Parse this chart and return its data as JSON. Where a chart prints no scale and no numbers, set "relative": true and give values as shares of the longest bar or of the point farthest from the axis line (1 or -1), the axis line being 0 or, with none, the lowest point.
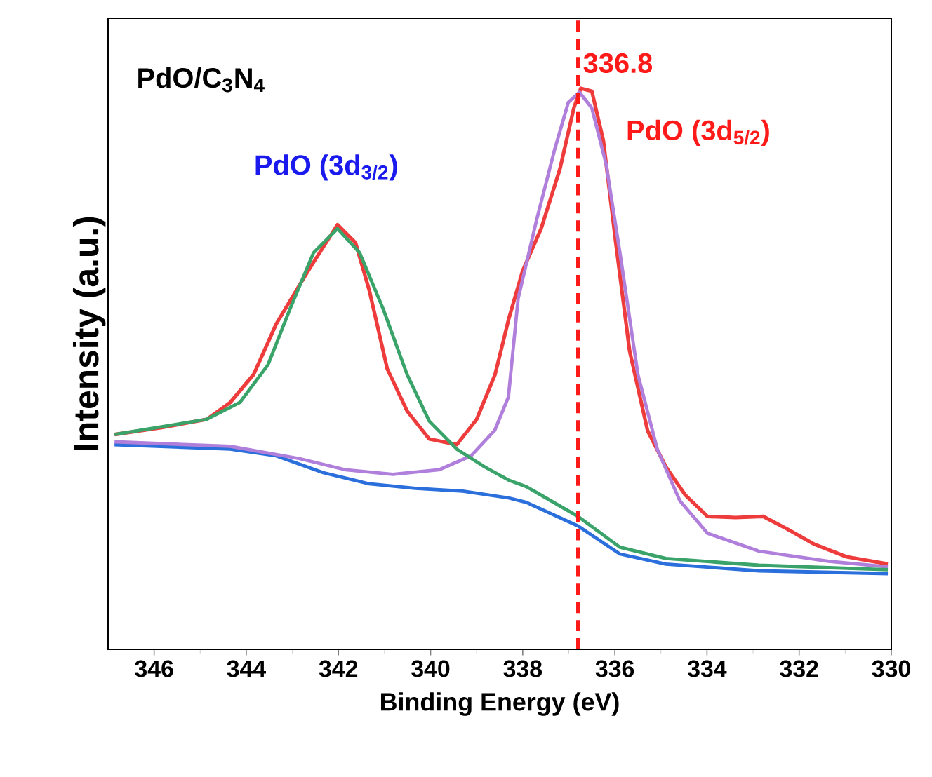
{
  "chart_data": {
    "type": "line",
    "xlabel": "Binding Energy (eV)",
    "ylabel": "Intensity (a.u.)",
    "relative": true,
    "xlim": [
      347,
      330
    ],
    "xticks": [
      346,
      344,
      342,
      340,
      338,
      336,
      334,
      332,
      330
    ],
    "grid": false,
    "marker": "none",
    "line_style": "solid",
    "ref_lines": [
      {
        "axis": "x",
        "value": 336.8,
        "label": "336.8",
        "color": "#ff1a1a",
        "line_style": "dashed"
      }
    ],
    "annotations": [
      "PdO/C$_{3}$N$_{4}$",
      "PdO (3d$_{3/2}$)",
      "PdO (3d$_{5/2}$)"
    ],
    "series": [
      {
        "color": "#ee3b3b",
        "x": [
          346.86,
          345.86,
          344.86,
          344.35,
          343.84,
          343.35,
          342.84,
          342.54,
          342.02,
          341.63,
          341.33,
          340.94,
          340.51,
          340.03,
          339.43,
          339.0,
          338.6,
          338.3,
          338.0,
          337.6,
          337.19,
          336.89,
          336.74,
          336.5,
          336.25,
          335.98,
          335.68,
          335.29,
          334.89,
          334.47,
          333.99,
          333.38,
          332.78,
          332.27,
          331.66,
          330.97,
          330.06
        ],
        "values": [
          0.383,
          0.395,
          0.41,
          0.44,
          0.49,
          0.58,
          0.65,
          0.69,
          0.757,
          0.725,
          0.64,
          0.5,
          0.425,
          0.375,
          0.365,
          0.41,
          0.49,
          0.59,
          0.675,
          0.75,
          0.857,
          0.965,
          1.0,
          0.995,
          0.907,
          0.725,
          0.532,
          0.39,
          0.325,
          0.275,
          0.237,
          0.235,
          0.237,
          0.215,
          0.187,
          0.165,
          0.152
        ]
      },
      {
        "color": "#2a6fdb",
        "x": [
          346.86,
          344.35,
          343.35,
          342.33,
          341.33,
          340.33,
          339.3,
          338.31,
          337.92,
          336.8,
          335.89,
          334.89,
          332.87,
          330.06
        ],
        "values": [
          0.365,
          0.357,
          0.345,
          0.315,
          0.295,
          0.287,
          0.282,
          0.27,
          0.262,
          0.22,
          0.17,
          0.152,
          0.14,
          0.135
        ]
      },
      {
        "color": "#b07fdb",
        "x": [
          346.86,
          344.35,
          342.84,
          341.84,
          340.82,
          339.82,
          339.12,
          338.61,
          338.31,
          338.1,
          337.7,
          337.31,
          337.01,
          336.77,
          336.5,
          336.19,
          335.89,
          335.5,
          335.08,
          334.59,
          333.99,
          332.87,
          331.36,
          330.06
        ],
        "values": [
          0.37,
          0.362,
          0.34,
          0.32,
          0.312,
          0.32,
          0.345,
          0.39,
          0.45,
          0.625,
          0.765,
          0.89,
          0.975,
          0.993,
          0.965,
          0.865,
          0.707,
          0.49,
          0.357,
          0.265,
          0.207,
          0.175,
          0.157,
          0.147
        ]
      },
      {
        "color": "#3aa36a",
        "x": [
          346.86,
          344.86,
          344.14,
          343.53,
          343.05,
          342.54,
          342.02,
          341.54,
          341.03,
          340.51,
          340.03,
          339.43,
          338.82,
          338.31,
          337.92,
          336.8,
          335.89,
          334.89,
          332.87,
          330.06
        ],
        "values": [
          0.383,
          0.41,
          0.44,
          0.507,
          0.607,
          0.707,
          0.75,
          0.707,
          0.607,
          0.49,
          0.407,
          0.357,
          0.325,
          0.302,
          0.29,
          0.237,
          0.182,
          0.162,
          0.15,
          0.142
        ]
      }
    ]
  }
}
